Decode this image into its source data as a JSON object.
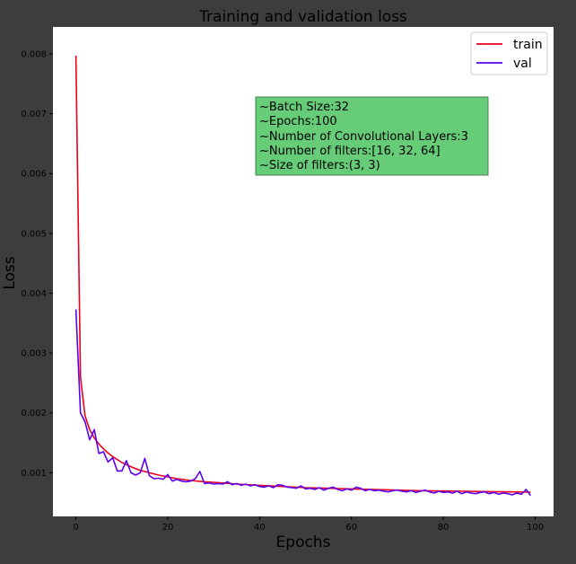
{
  "chart_data": {
    "type": "line",
    "title": "Training and validation loss",
    "xlabel": "Epochs",
    "ylabel": "Loss",
    "xlim": [
      -5,
      104
    ],
    "ylim": [
      0.00027,
      0.00845
    ],
    "xticks": [
      0,
      20,
      40,
      60,
      80,
      100
    ],
    "xtick_labels": [
      "0",
      "20",
      "40",
      "60",
      "80",
      "100"
    ],
    "yticks": [
      0.001,
      0.002,
      0.003,
      0.004,
      0.005,
      0.006,
      0.007,
      0.008
    ],
    "ytick_labels": [
      "0.001",
      "0.002",
      "0.003",
      "0.004",
      "0.005",
      "0.006",
      "0.007",
      "0.008"
    ],
    "grid": false,
    "legend_position": "top-right",
    "series": [
      {
        "name": "train",
        "color": "#e8001c",
        "x": [
          0,
          1,
          2,
          3,
          4,
          5,
          6,
          7,
          8,
          9,
          10,
          12,
          14,
          16,
          18,
          20,
          22,
          25,
          28,
          30,
          35,
          40,
          45,
          50,
          55,
          60,
          65,
          70,
          75,
          80,
          85,
          90,
          95,
          99
        ],
        "y": [
          0.00797,
          0.0026,
          0.00195,
          0.00172,
          0.00158,
          0.00148,
          0.0014,
          0.00133,
          0.00127,
          0.00122,
          0.00117,
          0.0011,
          0.00104,
          0.001,
          0.00096,
          0.00093,
          0.0009,
          0.00087,
          0.00085,
          0.00084,
          0.00081,
          0.00079,
          0.00077,
          0.00075,
          0.00074,
          0.00073,
          0.00072,
          0.00071,
          0.0007,
          0.000695,
          0.00069,
          0.000685,
          0.00068,
          0.000675
        ]
      },
      {
        "name": "val",
        "color": "#5b00ee",
        "x": [
          0,
          1,
          2,
          3,
          4,
          5,
          6,
          7,
          8,
          9,
          10,
          11,
          12,
          13,
          14,
          15,
          16,
          17,
          18,
          19,
          20,
          21,
          22,
          23,
          24,
          25,
          26,
          27,
          28,
          29,
          30,
          31,
          32,
          33,
          34,
          35,
          36,
          37,
          38,
          39,
          40,
          41,
          42,
          43,
          44,
          45,
          46,
          47,
          48,
          49,
          50,
          51,
          52,
          53,
          54,
          55,
          56,
          57,
          58,
          59,
          60,
          61,
          62,
          63,
          64,
          65,
          66,
          67,
          68,
          69,
          70,
          71,
          72,
          73,
          74,
          75,
          76,
          77,
          78,
          79,
          80,
          81,
          82,
          83,
          84,
          85,
          86,
          87,
          88,
          89,
          90,
          91,
          92,
          93,
          94,
          95,
          96,
          97,
          98,
          99
        ],
        "y": [
          0.00373,
          0.002,
          0.00185,
          0.00155,
          0.00172,
          0.00132,
          0.00135,
          0.00118,
          0.00125,
          0.00103,
          0.00103,
          0.0012,
          0.001,
          0.00096,
          0.001,
          0.00124,
          0.00095,
          0.0009,
          0.00091,
          0.00089,
          0.00097,
          0.00086,
          0.00089,
          0.00086,
          0.00085,
          0.00086,
          0.0009,
          0.00102,
          0.00082,
          0.00083,
          0.00081,
          0.00082,
          0.00081,
          0.00085,
          0.0008,
          0.00082,
          0.00079,
          0.00081,
          0.00078,
          0.0008,
          0.00077,
          0.00076,
          0.00078,
          0.00075,
          0.0008,
          0.00079,
          0.00076,
          0.00075,
          0.00074,
          0.00078,
          0.00073,
          0.00074,
          0.00072,
          0.00075,
          0.00071,
          0.00074,
          0.00076,
          0.00072,
          0.0007,
          0.00073,
          0.00071,
          0.00076,
          0.00074,
          0.0007,
          0.00072,
          0.0007,
          0.00071,
          0.00069,
          0.00068,
          0.0007,
          0.00071,
          0.00069,
          0.00068,
          0.0007,
          0.00067,
          0.00069,
          0.00071,
          0.00068,
          0.00066,
          0.00069,
          0.00067,
          0.00068,
          0.00066,
          0.00069,
          0.00065,
          0.00068,
          0.00066,
          0.00065,
          0.00067,
          0.00068,
          0.00065,
          0.00067,
          0.00064,
          0.00066,
          0.00065,
          0.00063,
          0.00066,
          0.00064,
          0.00072,
          0.00062
        ]
      }
    ],
    "annotation": {
      "lines": [
        "~Batch Size:32",
        "~Epochs:100",
        "~Number of Convolutional Layers:3",
        "~Number of filters:[16, 32, 64]",
        "~Size of filters:(3, 3)"
      ],
      "background": "#66cc77"
    }
  }
}
